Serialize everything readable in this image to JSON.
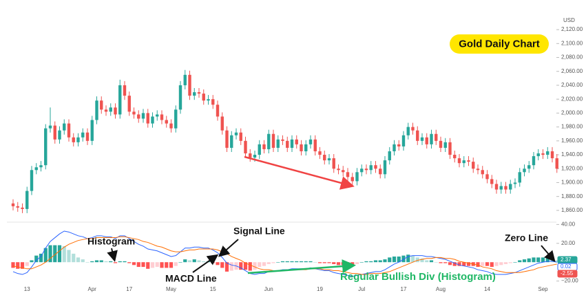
{
  "chart_data": [
    {
      "type": "candlestick",
      "title": "Gold Daily Chart",
      "unit": "USD",
      "up_color": "#26a69a",
      "down_color": "#ef5350",
      "categories": [
        null,
        null,
        null,
        "13",
        null,
        null,
        null,
        null,
        null,
        null,
        null,
        null,
        null,
        null,
        null,
        null,
        null,
        "Apr",
        null,
        null,
        null,
        null,
        null,
        null,
        null,
        "17",
        null,
        null,
        null,
        null,
        null,
        null,
        null,
        null,
        "May",
        null,
        null,
        null,
        null,
        null,
        null,
        null,
        null,
        "15",
        null,
        null,
        null,
        null,
        null,
        null,
        null,
        null,
        null,
        null,
        null,
        "Jun",
        null,
        null,
        null,
        null,
        null,
        null,
        null,
        null,
        null,
        null,
        "19",
        null,
        null,
        null,
        null,
        null,
        null,
        null,
        null,
        "Jul",
        null,
        null,
        null,
        null,
        null,
        null,
        null,
        null,
        "17",
        null,
        null,
        null,
        null,
        null,
        null,
        null,
        "Aug",
        null,
        null,
        null,
        null,
        null,
        null,
        null,
        null,
        null,
        "14",
        null,
        null,
        null,
        null,
        null,
        null,
        null,
        null,
        null,
        null,
        null,
        "Sep",
        null,
        null,
        null
      ],
      "open": [
        1870,
        1866,
        1864,
        1862,
        1888,
        1918,
        1922,
        1925,
        1978,
        1982,
        1962,
        1975,
        1985,
        1965,
        1958,
        1965,
        1972,
        1960,
        1990,
        2018,
        2005,
        2002,
        2008,
        1998,
        2040,
        2025,
        2002,
        1998,
        1992,
        2000,
        1985,
        1995,
        1998,
        1990,
        1985,
        1978,
        2005,
        2040,
        2055,
        2025,
        2030,
        2028,
        2018,
        2020,
        2012,
        1995,
        1975,
        1950,
        1968,
        1972,
        1960,
        1942,
        1936,
        1940,
        1955,
        1948,
        1970,
        1950,
        1962,
        1960,
        1950,
        1962,
        1955,
        1945,
        1955,
        1962,
        1945,
        1940,
        1932,
        1935,
        1920,
        1918,
        1915,
        1908,
        1902,
        1915,
        1920,
        1918,
        1925,
        1920,
        1912,
        1932,
        1945,
        1955,
        1952,
        1968,
        1980,
        1975,
        1960,
        1965,
        1955,
        1970,
        1960,
        1950,
        1958,
        1940,
        1935,
        1928,
        1932,
        1930,
        1920,
        1918,
        1912,
        1905,
        1898,
        1890,
        1895,
        1890,
        1898,
        1900,
        1915,
        1920,
        1925,
        1938,
        1942,
        1940,
        1945,
        1935
      ],
      "high": [
        1876,
        1872,
        1870,
        1894,
        1924,
        1928,
        1931,
        1984,
        2008,
        1988,
        1981,
        1991,
        1991,
        1971,
        1971,
        1978,
        1978,
        1996,
        2024,
        2024,
        2011,
        2014,
        2014,
        2048,
        2046,
        2031,
        2008,
        2004,
        2006,
        2006,
        2001,
        2004,
        2004,
        1996,
        1991,
        2011,
        2046,
        2062,
        2061,
        2036,
        2036,
        2034,
        2026,
        2026,
        2018,
        2001,
        1981,
        1974,
        1978,
        1978,
        1966,
        1948,
        1946,
        1961,
        1961,
        1976,
        1976,
        1968,
        1968,
        1966,
        1968,
        1968,
        1961,
        1961,
        1968,
        1968,
        1951,
        1946,
        1941,
        1941,
        1926,
        1924,
        1921,
        1914,
        1921,
        1926,
        1926,
        1931,
        1931,
        1926,
        1938,
        1951,
        1961,
        1961,
        1974,
        1986,
        1986,
        1981,
        1971,
        1971,
        1976,
        1976,
        1966,
        1964,
        1964,
        1946,
        1941,
        1938,
        1938,
        1936,
        1926,
        1924,
        1918,
        1911,
        1904,
        1901,
        1901,
        1904,
        1906,
        1921,
        1926,
        1931,
        1944,
        1948,
        1948,
        1951,
        1951,
        1941
      ],
      "low": [
        1860,
        1858,
        1856,
        1856,
        1882,
        1912,
        1916,
        1919,
        1972,
        1956,
        1956,
        1969,
        1959,
        1952,
        1952,
        1959,
        1954,
        1954,
        1984,
        1999,
        1996,
        1996,
        1992,
        1992,
        2019,
        1996,
        1992,
        1986,
        1986,
        1979,
        1979,
        1989,
        1984,
        1979,
        1972,
        1972,
        1999,
        2034,
        2019,
        2019,
        2022,
        2012,
        2012,
        2006,
        1989,
        1969,
        1944,
        1944,
        1962,
        1954,
        1936,
        1930,
        1930,
        1934,
        1942,
        1942,
        1944,
        1944,
        1954,
        1944,
        1944,
        1949,
        1939,
        1939,
        1949,
        1939,
        1934,
        1926,
        1926,
        1914,
        1912,
        1909,
        1902,
        1896,
        1896,
        1909,
        1912,
        1912,
        1914,
        1906,
        1906,
        1926,
        1939,
        1946,
        1946,
        1962,
        1969,
        1954,
        1954,
        1949,
        1949,
        1954,
        1944,
        1944,
        1934,
        1929,
        1922,
        1922,
        1924,
        1914,
        1912,
        1906,
        1899,
        1892,
        1884,
        1884,
        1884,
        1884,
        1892,
        1894,
        1909,
        1914,
        1919,
        1932,
        1934,
        1934,
        1929,
        1914
      ],
      "close": [
        1866,
        1864,
        1862,
        1888,
        1918,
        1922,
        1925,
        1978,
        1982,
        1962,
        1975,
        1985,
        1965,
        1958,
        1965,
        1972,
        1960,
        1990,
        2018,
        2005,
        2002,
        2008,
        1998,
        2040,
        2025,
        2002,
        1998,
        1992,
        2000,
        1985,
        1995,
        1998,
        1990,
        1985,
        1978,
        2005,
        2040,
        2055,
        2025,
        2030,
        2028,
        2018,
        2020,
        2012,
        1995,
        1975,
        1950,
        1968,
        1972,
        1960,
        1942,
        1936,
        1940,
        1955,
        1948,
        1970,
        1950,
        1962,
        1960,
        1950,
        1962,
        1955,
        1945,
        1955,
        1962,
        1945,
        1940,
        1932,
        1935,
        1920,
        1918,
        1915,
        1908,
        1902,
        1915,
        1920,
        1918,
        1925,
        1920,
        1912,
        1932,
        1945,
        1955,
        1952,
        1968,
        1980,
        1975,
        1960,
        1965,
        1955,
        1970,
        1960,
        1950,
        1958,
        1940,
        1935,
        1928,
        1932,
        1930,
        1920,
        1918,
        1912,
        1905,
        1898,
        1890,
        1895,
        1890,
        1898,
        1900,
        1915,
        1920,
        1925,
        1938,
        1942,
        1940,
        1945,
        1935,
        1920
      ],
      "ylim": [
        1850,
        2130
      ],
      "yticks": [
        {
          "value": 1860,
          "label": "1,860.00"
        },
        {
          "value": 1880,
          "label": "1,880.00"
        },
        {
          "value": 1900,
          "label": "1,900.00"
        },
        {
          "value": 1920,
          "label": "1,920.00"
        },
        {
          "value": 1940,
          "label": "1,940.00"
        },
        {
          "value": 1960,
          "label": "1,960.00"
        },
        {
          "value": 1980,
          "label": "1,980.00"
        },
        {
          "value": 2000,
          "label": "2,000.00"
        },
        {
          "value": 2020,
          "label": "2,020.00"
        },
        {
          "value": 2040,
          "label": "2,040.00"
        },
        {
          "value": 2060,
          "label": "2,060.00"
        },
        {
          "value": 2080,
          "label": "2,080.00"
        },
        {
          "value": 2100,
          "label": "2,100.00"
        },
        {
          "value": 2120,
          "label": "2,120.00"
        }
      ]
    },
    {
      "type": "macd",
      "series": [
        {
          "name": "Histogram",
          "colors": {
            "rise_up": "#26a69a",
            "fall_up": "#b2dfdb",
            "fall_down": "#ff5252",
            "rise_down": "#ffcdd2"
          },
          "values": [
            -6,
            -7,
            -7,
            -4,
            2,
            7,
            9,
            15,
            18,
            18,
            18,
            17,
            13,
            9,
            5,
            3,
            0,
            1,
            2,
            2,
            1,
            1,
            -1,
            1,
            1,
            -1,
            -3,
            -5,
            -5,
            -7,
            -6,
            -5,
            -6,
            -6,
            -6,
            -4,
            0,
            3,
            2,
            3,
            2,
            1,
            1,
            -1,
            -3,
            -6,
            -10,
            -9,
            -8,
            -8,
            -8,
            -9,
            -8,
            -5,
            -4,
            -2,
            -1,
            0,
            1,
            1,
            1,
            1,
            1,
            1,
            1,
            0,
            -1,
            -1,
            -1,
            -2,
            -3,
            -3,
            -3,
            -3,
            -2,
            0,
            1,
            1,
            2,
            2,
            3,
            5,
            6,
            6,
            7,
            8,
            7,
            5,
            4,
            2,
            2,
            0,
            -1,
            -1,
            -3,
            -4,
            -4,
            -4,
            -4,
            -4,
            -5,
            -4,
            -4,
            -5,
            -4,
            -3,
            -2,
            -1,
            0,
            2,
            3,
            4,
            5,
            5,
            5,
            5,
            4,
            2
          ]
        },
        {
          "name": "MACD Line",
          "color": "#2962ff",
          "values": [
            -10,
            -12,
            -13,
            -11,
            -5,
            2,
            6,
            15,
            22,
            26,
            30,
            33,
            32,
            30,
            28,
            27,
            25,
            26,
            28,
            28,
            27,
            27,
            25,
            28,
            28,
            25,
            22,
            19,
            17,
            14,
            13,
            12,
            10,
            8,
            6,
            7,
            11,
            15,
            15,
            16,
            16,
            15,
            15,
            13,
            10,
            5,
            -1,
            -3,
            -4,
            -6,
            -9,
            -12,
            -13,
            -12,
            -12,
            -10,
            -10,
            -9,
            -8,
            -8,
            -7,
            -7,
            -7,
            -7,
            -6,
            -7,
            -8,
            -9,
            -9,
            -11,
            -12,
            -13,
            -14,
            -15,
            -14,
            -13,
            -12,
            -11,
            -10,
            -10,
            -8,
            -5,
            -2,
            0,
            3,
            6,
            7,
            7,
            7,
            6,
            6,
            5,
            4,
            3,
            1,
            -1,
            -3,
            -4,
            -5,
            -6,
            -8,
            -9,
            -10,
            -12,
            -13,
            -13,
            -13,
            -12,
            -11,
            -9,
            -7,
            -5,
            -3,
            -1,
            0,
            1,
            1,
            0
          ]
        },
        {
          "name": "Signal Line",
          "color": "#ff6d00",
          "values": [
            -4,
            -5,
            -6,
            -7,
            -7,
            -5,
            -3,
            0,
            4,
            8,
            12,
            16,
            19,
            21,
            23,
            24,
            25,
            25,
            26,
            26,
            26,
            26,
            26,
            27,
            27,
            26,
            25,
            24,
            22,
            21,
            19,
            17,
            16,
            14,
            12,
            11,
            11,
            12,
            13,
            13,
            14,
            14,
            14,
            14,
            13,
            11,
            9,
            6,
            4,
            2,
            -1,
            -3,
            -5,
            -7,
            -8,
            -8,
            -9,
            -9,
            -9,
            -9,
            -8,
            -8,
            -8,
            -8,
            -7,
            -7,
            -7,
            -8,
            -8,
            -9,
            -9,
            -10,
            -11,
            -12,
            -12,
            -13,
            -13,
            -12,
            -12,
            -12,
            -11,
            -10,
            -8,
            -6,
            -4,
            -2,
            0,
            2,
            3,
            4,
            4,
            5,
            5,
            4,
            4,
            3,
            1,
            0,
            -1,
            -2,
            -3,
            -5,
            -6,
            -7,
            -9,
            -10,
            -11,
            -11,
            -11,
            -11,
            -10,
            -9,
            -8,
            -6,
            -5,
            -4,
            -3,
            -2
          ]
        }
      ],
      "ylim": [
        -21,
        41
      ],
      "yticks": [
        {
          "value": 40,
          "label": "40.00"
        },
        {
          "value": 20,
          "label": "20.00"
        },
        {
          "value": -20,
          "label": "−20.00"
        }
      ],
      "price_tags": [
        {
          "value": 2.37,
          "color": "#26a69a"
        },
        {
          "value": 0.02,
          "color": "#2962ff"
        },
        {
          "value": -2.55,
          "color": "#ef5350"
        }
      ],
      "annotations": [
        "Zero Line",
        "Regular Bullish Div (Histogram)"
      ]
    }
  ]
}
